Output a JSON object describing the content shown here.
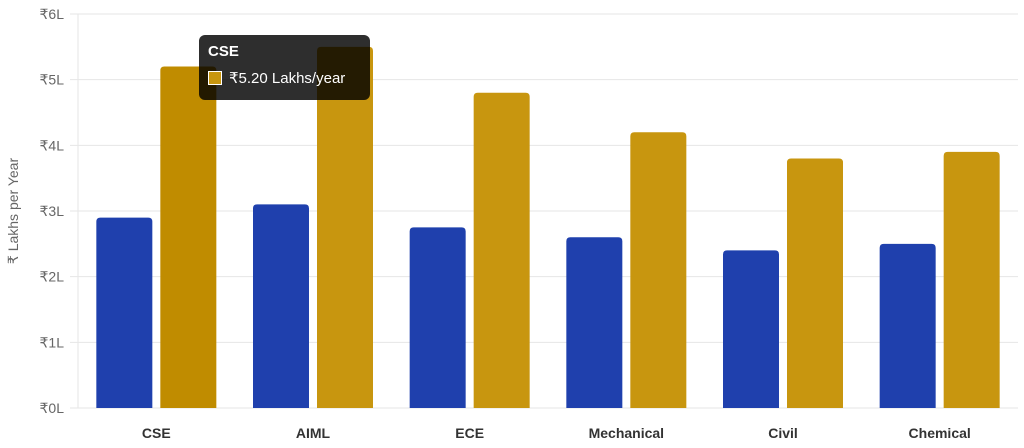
{
  "chart_data": {
    "type": "bar",
    "categories": [
      "CSE",
      "AIML",
      "ECE",
      "Mechanical",
      "Civil",
      "Chemical"
    ],
    "series": [
      {
        "values": [
          2.9,
          3.1,
          2.75,
          2.6,
          2.4,
          2.5
        ],
        "color": "#1f40ad"
      },
      {
        "values": [
          5.2,
          5.5,
          4.8,
          4.2,
          3.8,
          3.9
        ],
        "color": "#c8960f",
        "hover_color": "#c08c00"
      }
    ],
    "ylabel": "₹ Lakhs per Year",
    "ylim": [
      0,
      6
    ],
    "yticks": [
      0,
      1,
      2,
      3,
      4,
      5,
      6
    ],
    "ytick_labels": [
      "₹0L",
      "₹1L",
      "₹2L",
      "₹3L",
      "₹4L",
      "₹5L",
      "₹6L"
    ],
    "grid": true,
    "legend": "none",
    "tooltip": {
      "category_index": 0,
      "series_index": 1,
      "title": "CSE",
      "label": "₹5.20 Lakhs/year"
    }
  }
}
